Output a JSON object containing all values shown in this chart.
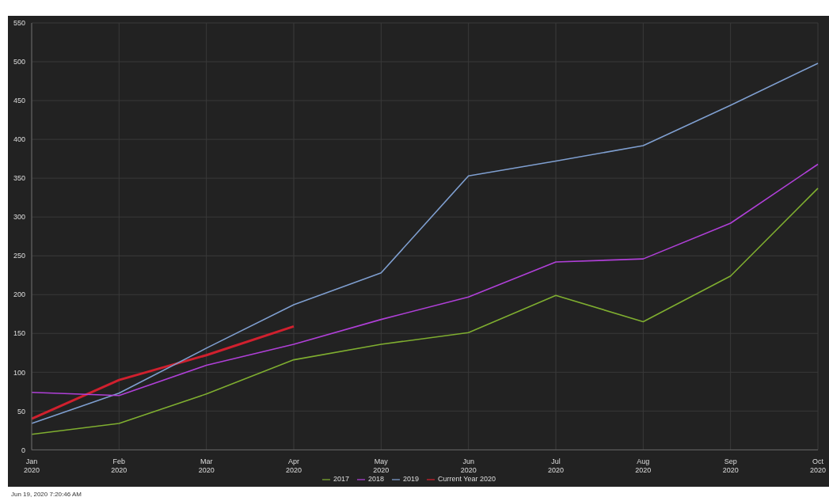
{
  "chart_data": {
    "type": "line",
    "categories": [
      "Jan 2020",
      "Feb 2020",
      "Mar 2020",
      "Apr 2020",
      "May 2020",
      "Jun 2020",
      "Jul 2020",
      "Aug 2020",
      "Sep 2020",
      "Oct 2020"
    ],
    "series": [
      {
        "name": "Current Year 2020",
        "color": "#d0202e",
        "values": [
          40,
          90,
          122,
          159,
          null,
          null,
          null,
          null,
          null,
          null
        ]
      },
      {
        "name": "2019",
        "color": "#7f9fd0",
        "values": [
          34,
          73,
          131,
          187,
          228,
          353,
          372,
          392,
          444,
          498
        ]
      },
      {
        "name": "2018",
        "color": "#b040d8",
        "values": [
          74,
          70,
          109,
          136,
          168,
          197,
          242,
          246,
          292,
          368
        ]
      },
      {
        "name": "2017",
        "color": "#7fae30",
        "values": [
          20,
          34,
          72,
          116,
          136,
          151,
          199,
          165,
          224,
          337
        ]
      }
    ],
    "ylim": [
      0,
      550
    ],
    "yticks": [
      0,
      50,
      100,
      150,
      200,
      250,
      300,
      350,
      400,
      450,
      500,
      550
    ],
    "grid": true,
    "legend": "bottom",
    "marker": "none",
    "line_style": "solid",
    "annotations": [
      "Jun 19, 2020 7:20:46 AM"
    ]
  }
}
